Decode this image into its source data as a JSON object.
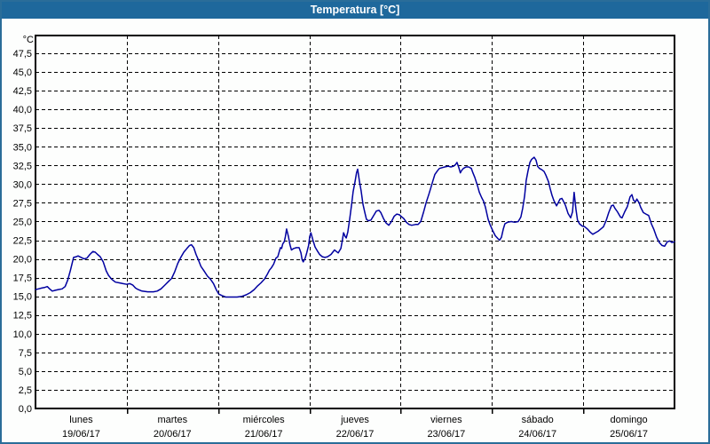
{
  "window": {
    "title": "Temperatura [°C]"
  },
  "colors": {
    "titlebar_bg": "#1e689c",
    "titlebar_text": "#ffffff",
    "window_border": "#2a6d99",
    "background": "#fdfefd",
    "line": "#0000a0",
    "grid": "#000000",
    "text": "#000000"
  },
  "chart_data": {
    "type": "line",
    "title": "Temperatura [°C]",
    "y_unit": "°C",
    "y_min": 0,
    "y_max": 47.5,
    "y_step": 2.5,
    "decimal_separator": ",",
    "grid": true,
    "x_hours_total": 168,
    "days": [
      {
        "name": "lunes",
        "date": "19/06/17"
      },
      {
        "name": "martes",
        "date": "20/06/17"
      },
      {
        "name": "miércoles",
        "date": "21/06/17"
      },
      {
        "name": "jueves",
        "date": "22/06/17"
      },
      {
        "name": "viernes",
        "date": "23/06/17"
      },
      {
        "name": "sábado",
        "date": "24/06/17"
      },
      {
        "name": "domingo",
        "date": "25/06/17"
      }
    ],
    "series": [
      {
        "name": "Temperatura",
        "color": "#0000a0",
        "points": [
          [
            0,
            15.9
          ],
          [
            0.8,
            16.0
          ],
          [
            1.6,
            16.1
          ],
          [
            2.5,
            16.2
          ],
          [
            3.1,
            16.3
          ],
          [
            3.7,
            16.0
          ],
          [
            4.4,
            15.7
          ],
          [
            5.2,
            15.8
          ],
          [
            6,
            15.9
          ],
          [
            7,
            16.0
          ],
          [
            7.8,
            16.3
          ],
          [
            8.5,
            17.2
          ],
          [
            9.2,
            18.5
          ],
          [
            10,
            20.2
          ],
          [
            10.7,
            20.3
          ],
          [
            11.2,
            20.4
          ],
          [
            12,
            20.2
          ],
          [
            12.8,
            20.0
          ],
          [
            13.5,
            20.1
          ],
          [
            14.3,
            20.6
          ],
          [
            15.1,
            21.0
          ],
          [
            15.7,
            20.9
          ],
          [
            16.3,
            20.6
          ],
          [
            17,
            20.3
          ],
          [
            17.8,
            19.6
          ],
          [
            18.6,
            18.4
          ],
          [
            19.2,
            17.8
          ],
          [
            20,
            17.3
          ],
          [
            21,
            16.9
          ],
          [
            22,
            16.8
          ],
          [
            23,
            16.7
          ],
          [
            24,
            16.6
          ],
          [
            24.8,
            16.7
          ],
          [
            25.6,
            16.5
          ],
          [
            26.3,
            16.1
          ],
          [
            27,
            15.9
          ],
          [
            28,
            15.7
          ],
          [
            29.5,
            15.6
          ],
          [
            31,
            15.6
          ],
          [
            32,
            15.7
          ],
          [
            33,
            16.0
          ],
          [
            34,
            16.5
          ],
          [
            35,
            17.0
          ],
          [
            35.8,
            17.4
          ],
          [
            36.6,
            18.3
          ],
          [
            37.4,
            19.4
          ],
          [
            38.2,
            20.2
          ],
          [
            39,
            20.9
          ],
          [
            39.8,
            21.4
          ],
          [
            40.5,
            21.8
          ],
          [
            41,
            21.9
          ],
          [
            41.6,
            21.5
          ],
          [
            42.2,
            20.6
          ],
          [
            42.8,
            19.9
          ],
          [
            43.5,
            19.0
          ],
          [
            44.3,
            18.4
          ],
          [
            45.2,
            17.7
          ],
          [
            46,
            17.3
          ],
          [
            46.8,
            16.7
          ],
          [
            47.5,
            15.9
          ],
          [
            48.2,
            15.3
          ],
          [
            49,
            15.1
          ],
          [
            50,
            14.9
          ],
          [
            51.5,
            14.9
          ],
          [
            53,
            14.9
          ],
          [
            54.3,
            15.0
          ],
          [
            55.4,
            15.2
          ],
          [
            56.5,
            15.5
          ],
          [
            57.5,
            15.9
          ],
          [
            58.4,
            16.4
          ],
          [
            59.3,
            16.8
          ],
          [
            60.2,
            17.3
          ],
          [
            60.9,
            17.9
          ],
          [
            61.5,
            18.5
          ],
          [
            62,
            18.8
          ],
          [
            62.6,
            19.3
          ],
          [
            63.2,
            20.1
          ],
          [
            63.7,
            20.3
          ],
          [
            64.1,
            21.0
          ],
          [
            64.4,
            21.5
          ],
          [
            64.7,
            21.4
          ],
          [
            65,
            22.0
          ],
          [
            65.4,
            22.3
          ],
          [
            65.7,
            23.0
          ],
          [
            66,
            24.0
          ],
          [
            66.5,
            23.0
          ],
          [
            66.9,
            21.9
          ],
          [
            67.3,
            21.2
          ],
          [
            67.9,
            21.4
          ],
          [
            68.6,
            21.5
          ],
          [
            69.3,
            21.5
          ],
          [
            69.8,
            20.8
          ],
          [
            70.1,
            19.9
          ],
          [
            70.4,
            19.6
          ],
          [
            70.9,
            20.1
          ],
          [
            71.3,
            20.8
          ],
          [
            71.8,
            21.8
          ],
          [
            72.1,
            23.0
          ],
          [
            72.4,
            23.5
          ],
          [
            73,
            22.4
          ],
          [
            73.5,
            21.6
          ],
          [
            74.2,
            21.0
          ],
          [
            74.7,
            20.6
          ],
          [
            75.4,
            20.3
          ],
          [
            76.1,
            20.2
          ],
          [
            76.8,
            20.3
          ],
          [
            77.7,
            20.6
          ],
          [
            78.6,
            21.2
          ],
          [
            79.1,
            21.0
          ],
          [
            79.6,
            20.8
          ],
          [
            80.3,
            21.4
          ],
          [
            80.7,
            22.6
          ],
          [
            81,
            23.5
          ],
          [
            81.4,
            23.0
          ],
          [
            81.7,
            22.8
          ],
          [
            82.1,
            23.6
          ],
          [
            82.6,
            25.3
          ],
          [
            83.1,
            27.2
          ],
          [
            83.5,
            29.0
          ],
          [
            84,
            30.3
          ],
          [
            84.4,
            31.5
          ],
          [
            84.7,
            32.0
          ],
          [
            85.2,
            30.3
          ],
          [
            85.6,
            29.1
          ],
          [
            86.1,
            27.3
          ],
          [
            86.6,
            26.2
          ],
          [
            87,
            25.3
          ],
          [
            87.5,
            25.1
          ],
          [
            88.2,
            25.2
          ],
          [
            88.9,
            25.8
          ],
          [
            89.6,
            26.4
          ],
          [
            90.3,
            26.5
          ],
          [
            90.8,
            26.2
          ],
          [
            91.5,
            25.4
          ],
          [
            92.2,
            24.8
          ],
          [
            92.9,
            24.5
          ],
          [
            93.6,
            25.0
          ],
          [
            94.3,
            25.7
          ],
          [
            95,
            26.0
          ],
          [
            95.7,
            25.9
          ],
          [
            96.1,
            25.7
          ],
          [
            96.8,
            25.4
          ],
          [
            97.5,
            24.9
          ],
          [
            98.2,
            24.6
          ],
          [
            98.9,
            24.5
          ],
          [
            99.9,
            24.6
          ],
          [
            100.6,
            24.6
          ],
          [
            101.3,
            25.0
          ],
          [
            102,
            26.2
          ],
          [
            102.7,
            27.5
          ],
          [
            103.4,
            28.6
          ],
          [
            103.8,
            29.3
          ],
          [
            104.5,
            30.5
          ],
          [
            105,
            31.3
          ],
          [
            105.7,
            31.8
          ],
          [
            106.2,
            32.1
          ],
          [
            106.9,
            32.2
          ],
          [
            107.6,
            32.3
          ],
          [
            108.5,
            32.4
          ],
          [
            109.2,
            32.3
          ],
          [
            109.9,
            32.4
          ],
          [
            110.4,
            32.6
          ],
          [
            110.8,
            32.9
          ],
          [
            111.3,
            32.2
          ],
          [
            111.7,
            31.5
          ],
          [
            112,
            31.8
          ],
          [
            112.5,
            32.1
          ],
          [
            113.2,
            32.3
          ],
          [
            113.9,
            32.3
          ],
          [
            114.6,
            32.1
          ],
          [
            115,
            31.5
          ],
          [
            115.5,
            30.9
          ],
          [
            116.2,
            29.8
          ],
          [
            116.7,
            28.9
          ],
          [
            117.3,
            28.2
          ],
          [
            117.8,
            27.7
          ],
          [
            118.3,
            26.9
          ],
          [
            119,
            25.3
          ],
          [
            119.5,
            24.6
          ],
          [
            120.2,
            23.8
          ],
          [
            120.9,
            23.1
          ],
          [
            121.6,
            22.7
          ],
          [
            122,
            22.5
          ],
          [
            122.5,
            22.9
          ],
          [
            123,
            24.0
          ],
          [
            123.4,
            24.7
          ],
          [
            124.1,
            24.9
          ],
          [
            125.1,
            25.0
          ],
          [
            126,
            24.9
          ],
          [
            126.9,
            25.0
          ],
          [
            127.6,
            25.6
          ],
          [
            128.1,
            26.8
          ],
          [
            128.6,
            28.4
          ],
          [
            129,
            30.5
          ],
          [
            129.5,
            31.8
          ],
          [
            130,
            32.9
          ],
          [
            130.4,
            33.3
          ],
          [
            131.1,
            33.6
          ],
          [
            131.6,
            33.2
          ],
          [
            132,
            32.4
          ],
          [
            132.5,
            32.1
          ],
          [
            133.2,
            31.9
          ],
          [
            133.7,
            31.7
          ],
          [
            134.2,
            31.2
          ],
          [
            134.9,
            30.3
          ],
          [
            135.3,
            29.4
          ],
          [
            135.8,
            28.5
          ],
          [
            136.3,
            27.8
          ],
          [
            137,
            27.1
          ],
          [
            137.4,
            27.5
          ],
          [
            137.9,
            28.0
          ],
          [
            138.4,
            28.1
          ],
          [
            138.8,
            27.7
          ],
          [
            139.3,
            27.2
          ],
          [
            140,
            26.1
          ],
          [
            140.7,
            25.5
          ],
          [
            141.2,
            26.3
          ],
          [
            141.6,
            28.9
          ],
          [
            142.1,
            26.6
          ],
          [
            142.5,
            25.2
          ],
          [
            143,
            24.7
          ],
          [
            143.7,
            24.4
          ],
          [
            144.4,
            24.3
          ],
          [
            145.1,
            24.0
          ],
          [
            145.8,
            23.6
          ],
          [
            146.5,
            23.3
          ],
          [
            147.2,
            23.5
          ],
          [
            147.9,
            23.7
          ],
          [
            148.6,
            24.0
          ],
          [
            149.3,
            24.3
          ],
          [
            150,
            25.1
          ],
          [
            150.7,
            26.2
          ],
          [
            151.4,
            27.1
          ],
          [
            151.9,
            27.2
          ],
          [
            152.3,
            26.8
          ],
          [
            153,
            26.3
          ],
          [
            153.8,
            25.6
          ],
          [
            154.2,
            25.5
          ],
          [
            154.9,
            26.3
          ],
          [
            155.6,
            27.0
          ],
          [
            156.3,
            28.3
          ],
          [
            156.8,
            28.6
          ],
          [
            157.2,
            27.9
          ],
          [
            157.7,
            27.6
          ],
          [
            158.1,
            28.0
          ],
          [
            158.7,
            27.5
          ],
          [
            159.1,
            26.9
          ],
          [
            159.8,
            26.2
          ],
          [
            160.5,
            26.0
          ],
          [
            161.2,
            25.8
          ],
          [
            161.9,
            24.7
          ],
          [
            162.6,
            23.9
          ],
          [
            163.3,
            22.9
          ],
          [
            164,
            22.2
          ],
          [
            164.7,
            21.8
          ],
          [
            165.4,
            21.7
          ],
          [
            166.1,
            22.3
          ],
          [
            166.8,
            22.4
          ],
          [
            167.3,
            22.2
          ],
          [
            168,
            22.3
          ]
        ]
      }
    ]
  }
}
